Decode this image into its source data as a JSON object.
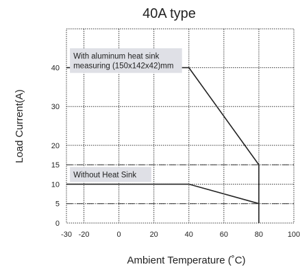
{
  "chart_data": {
    "type": "line",
    "title": "40A type",
    "xlabel": "Ambient Temperature (˚C)",
    "ylabel": "Load  Current(A)",
    "xlim": [
      -30,
      100
    ],
    "ylim": [
      0,
      50
    ],
    "x_ticks": [
      -30,
      -20,
      0,
      20,
      40,
      60,
      80,
      100
    ],
    "x_tick_labels": [
      "-30",
      "-20",
      "0",
      "20",
      "40",
      "60",
      "80",
      "100"
    ],
    "y_ticks": [
      0,
      5,
      10,
      15,
      20,
      30,
      40
    ],
    "y_tick_labels": [
      "0",
      "5",
      "10",
      "15",
      "20",
      "30",
      "40"
    ],
    "grid": true,
    "series": [
      {
        "x": [
          -30,
          40,
          80,
          80
        ],
        "y": [
          40,
          40,
          15,
          0
        ]
      },
      {
        "x": [
          -30,
          40,
          80
        ],
        "y": [
          10,
          10,
          5
        ]
      }
    ],
    "reference_lines": [
      {
        "y": 15,
        "style": "dashed"
      },
      {
        "y": 5,
        "style": "dashed"
      }
    ],
    "annotations": [
      {
        "lines": [
          "With aluminum heat sink",
          "measuring (150x142x42)mm"
        ],
        "anchor_x": -28,
        "anchor_y": 45
      },
      {
        "lines": [
          "Without Heat Sink"
        ],
        "anchor_x": -28,
        "anchor_y": 12.5
      }
    ],
    "colors": {
      "line": "#222222",
      "grid": "#333333",
      "label_box": "#dfe0e6"
    }
  }
}
